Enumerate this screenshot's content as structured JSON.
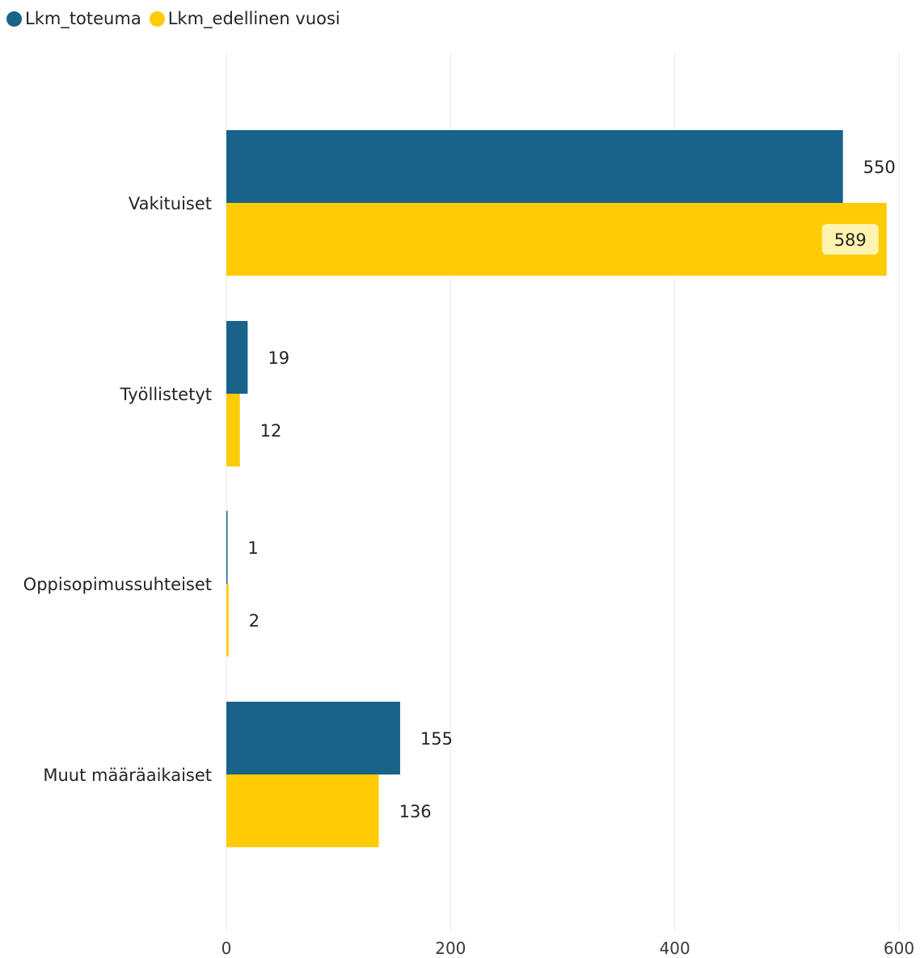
{
  "chart_data": {
    "type": "bar",
    "orientation": "horizontal",
    "categories": [
      "Vakituiset",
      "Työllistetyt",
      "Oppisopimussuhteiset",
      "Muut määräaikaiset"
    ],
    "series": [
      {
        "name": "Lkm_toteuma",
        "values": [
          550,
          19,
          1,
          155
        ],
        "color": "#17638A"
      },
      {
        "name": "Lkm_edellinen vuosi",
        "values": [
          589,
          12,
          2,
          136
        ],
        "color": "#FFCB05"
      }
    ],
    "xlim": [
      0,
      600
    ],
    "xticks": [
      0,
      200,
      400,
      600
    ],
    "grid": true,
    "legend_position": "top-left",
    "highlighted_label": {
      "series": 1,
      "category": 0,
      "background": "#FFF3B0"
    }
  }
}
